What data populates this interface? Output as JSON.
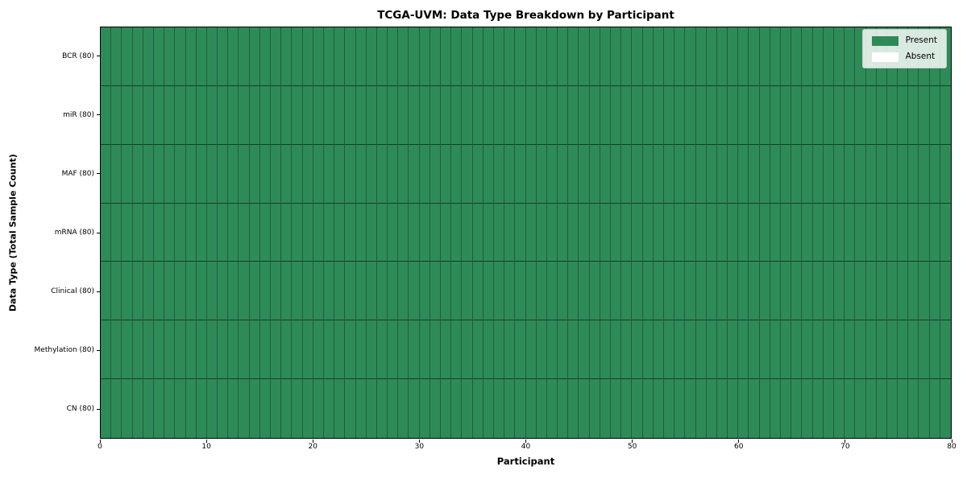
{
  "chart_data": {
    "type": "heatmap",
    "title": "TCGA-UVM: Data Type Breakdown by Participant",
    "xlabel": "Participant",
    "ylabel": "Data Type (Total Sample Count)",
    "x_range": [
      0,
      80
    ],
    "x_ticks": [
      0,
      10,
      20,
      30,
      40,
      50,
      60,
      70,
      80
    ],
    "n_participants": 80,
    "rows": [
      {
        "label": "BCR (80)",
        "data_type": "BCR",
        "total_samples": 80,
        "present_count": 80,
        "absent_count": 0
      },
      {
        "label": "miR (80)",
        "data_type": "miR",
        "total_samples": 80,
        "present_count": 80,
        "absent_count": 0
      },
      {
        "label": "MAF (80)",
        "data_type": "MAF",
        "total_samples": 80,
        "present_count": 80,
        "absent_count": 0
      },
      {
        "label": "mRNA (80)",
        "data_type": "mRNA",
        "total_samples": 80,
        "present_count": 80,
        "absent_count": 0
      },
      {
        "label": "Clinical (80)",
        "data_type": "Clinical",
        "total_samples": 80,
        "present_count": 80,
        "absent_count": 0
      },
      {
        "label": "Methylation (80)",
        "data_type": "Methylation",
        "total_samples": 80,
        "present_count": 80,
        "absent_count": 0
      },
      {
        "label": "CN (80)",
        "data_type": "CN",
        "total_samples": 80,
        "present_count": 80,
        "absent_count": 0
      }
    ],
    "all_cells_present": true,
    "legend": {
      "position": "upper-right",
      "items": [
        {
          "label": "Present",
          "state": "present",
          "color": "#2e8b57"
        },
        {
          "label": "Absent",
          "state": "absent",
          "color": "#ffffff"
        }
      ]
    },
    "colors": {
      "present": "#2e8b57",
      "absent": "#ffffff",
      "grid_line_vertical": "#1e5e3e",
      "grid_line_horizontal": "#12402a",
      "spine": "#000000",
      "background": "#ffffff"
    },
    "grid": false
  }
}
